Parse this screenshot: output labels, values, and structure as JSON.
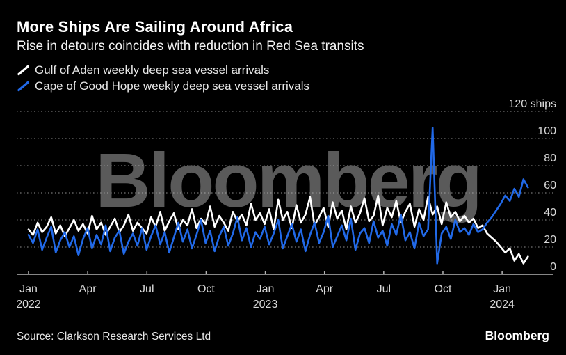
{
  "header": {
    "title": "More Ships Are Sailing Around Africa",
    "subtitle": "Rise in detours coincides with reduction in Red Sea transits"
  },
  "legend": {
    "items": [
      {
        "label": "Gulf of Aden weekly deep sea vessel arrivals",
        "color": "#ffffff"
      },
      {
        "label": "Cape of Good Hope weekly deep sea vessel arrivals",
        "color": "#2169e8"
      }
    ]
  },
  "watermark": "Bloomberg",
  "footer": {
    "source": "Source: Clarkson Research Services Ltd",
    "brand": "Bloomberg"
  },
  "chart_data": {
    "type": "line",
    "title": "More Ships Are Sailing Around Africa",
    "subtitle": "Rise in detours coincides with reduction in Red Sea transits",
    "unit_top_label": "120 ships",
    "y_unit": "ships",
    "ylim": [
      0,
      120
    ],
    "y_ticks": [
      0,
      20,
      40,
      60,
      80,
      100,
      120
    ],
    "grid": "horizontal-dotted",
    "legend_position": "top-left",
    "frequency": "weekly",
    "x_range": [
      "Jan 2022",
      "Feb 2024"
    ],
    "x_tick_labels": [
      {
        "month": "Jan",
        "year": "2022"
      },
      {
        "month": "Apr"
      },
      {
        "month": "Jul"
      },
      {
        "month": "Oct"
      },
      {
        "month": "Jan",
        "year": "2023"
      },
      {
        "month": "Apr"
      },
      {
        "month": "Jul"
      },
      {
        "month": "Oct"
      },
      {
        "month": "Jan",
        "year": "2024"
      }
    ],
    "series": [
      {
        "name": "Gulf of Aden weekly deep sea vessel arrivals",
        "color": "#ffffff",
        "values": [
          33,
          29,
          38,
          31,
          35,
          42,
          30,
          36,
          28,
          34,
          40,
          32,
          37,
          30,
          43,
          33,
          38,
          29,
          35,
          41,
          31,
          36,
          44,
          32,
          38,
          34,
          30,
          42,
          35,
          46,
          32,
          39,
          45,
          33,
          40,
          36,
          48,
          34,
          41,
          37,
          50,
          35,
          43,
          38,
          32,
          46,
          39,
          44,
          36,
          52,
          40,
          45,
          37,
          48,
          33,
          55,
          40,
          46,
          34,
          51,
          38,
          44,
          57,
          36,
          42,
          49,
          35,
          53,
          41,
          47,
          33,
          50,
          38,
          45,
          56,
          39,
          43,
          58,
          36,
          49,
          42,
          54,
          38,
          46,
          52,
          35,
          48,
          40,
          57,
          44,
          50,
          37,
          53,
          42,
          46,
          39,
          43,
          38,
          41,
          34,
          36,
          30,
          27,
          24,
          20,
          16,
          19,
          10,
          15,
          8,
          13
        ]
      },
      {
        "name": "Cape of Good Hope weekly deep sea vessel arrivals",
        "color": "#2169e8",
        "values": [
          29,
          23,
          33,
          18,
          27,
          35,
          16,
          25,
          31,
          20,
          28,
          14,
          26,
          34,
          19,
          29,
          22,
          36,
          17,
          27,
          32,
          15,
          24,
          30,
          21,
          34,
          18,
          28,
          36,
          22,
          31,
          16,
          27,
          38,
          24,
          33,
          19,
          29,
          40,
          23,
          32,
          17,
          28,
          35,
          21,
          30,
          42,
          25,
          34,
          20,
          31,
          26,
          35,
          22,
          30,
          40,
          19,
          28,
          37,
          24,
          33,
          17,
          29,
          38,
          23,
          31,
          43,
          20,
          28,
          36,
          25,
          41,
          18,
          30,
          34,
          23,
          39,
          27,
          32,
          21,
          37,
          29,
          44,
          25,
          31,
          19,
          38,
          28,
          33,
          108,
          8,
          30,
          35,
          26,
          40,
          31,
          34,
          29,
          37,
          31,
          33,
          38,
          42,
          47,
          52,
          58,
          54,
          63,
          57,
          70,
          64
        ]
      }
    ]
  }
}
